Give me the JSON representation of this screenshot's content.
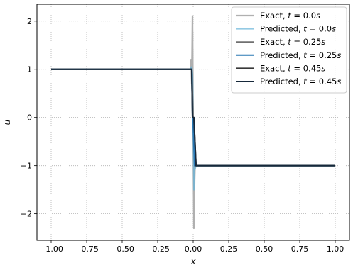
{
  "chart_data": {
    "type": "line",
    "xlabel": "x",
    "ylabel": "u",
    "xlim": [
      -1.1,
      1.1
    ],
    "ylim": [
      -2.55,
      2.35
    ],
    "x_ticks": [
      -1.0,
      -0.75,
      -0.5,
      -0.25,
      0.0,
      0.25,
      0.5,
      0.75,
      1.0
    ],
    "x_tick_labels": [
      "−1.00",
      "−0.75",
      "−0.50",
      "−0.25",
      "0.00",
      "0.25",
      "0.50",
      "0.75",
      "1.00"
    ],
    "y_ticks": [
      -2,
      -1,
      0,
      1,
      2
    ],
    "y_tick_labels": [
      "−2",
      "−1",
      "0",
      "1",
      "2"
    ],
    "grid": true,
    "legend_position": "top-right",
    "series": [
      {
        "name": "Exact, t = 0.0s",
        "legend": {
          "prefix": "Exact, ",
          "var": "t",
          "mid": " = 0.0",
          "unit": "s"
        },
        "color": "#b0b0b0",
        "width": 2.2,
        "opacity": 1,
        "x": [
          -1.0,
          -0.02,
          -0.015,
          -0.01,
          -0.005,
          0.0,
          0.005,
          0.01,
          0.015,
          0.02,
          1.0
        ],
        "y": [
          1.0,
          1.0,
          1.2,
          0.7,
          2.1,
          -0.3,
          -2.3,
          -1.3,
          -0.8,
          -1.0,
          -1.0
        ]
      },
      {
        "name": "Predicted, t = 0.0s",
        "legend": {
          "prefix": "Predicted, ",
          "var": "t",
          "mid": " = 0.0",
          "unit": "s"
        },
        "color": "#67b3d8",
        "width": 2.0,
        "opacity": 0.7,
        "x": [
          -1.0,
          -0.02,
          -0.01,
          -0.005,
          0.0,
          0.005,
          0.01,
          0.02,
          1.0
        ],
        "y": [
          1.0,
          1.0,
          1.05,
          0.9,
          0.0,
          -1.5,
          -1.1,
          -1.0,
          -1.0
        ]
      },
      {
        "name": "Exact, t = 0.25s",
        "legend": {
          "prefix": "Exact, ",
          "var": "t",
          "mid": " = 0.25",
          "unit": "s"
        },
        "color": "#707070",
        "width": 2.0,
        "opacity": 1,
        "x": [
          -1.0,
          -0.01,
          0.0,
          0.01,
          1.0
        ],
        "y": [
          1.0,
          1.0,
          0.0,
          -1.0,
          -1.0
        ]
      },
      {
        "name": "Predicted, t = 0.25s",
        "legend": {
          "prefix": "Predicted, ",
          "var": "t",
          "mid": " = 0.25",
          "unit": "s"
        },
        "color": "#2a78b4",
        "width": 2.0,
        "opacity": 1,
        "x": [
          -1.0,
          -0.01,
          -0.005,
          0.0,
          0.01,
          1.0
        ],
        "y": [
          1.0,
          1.0,
          0.0,
          -0.2,
          -1.0,
          -1.0
        ]
      },
      {
        "name": "Exact, t = 0.45s",
        "legend": {
          "prefix": "Exact, ",
          "var": "t",
          "mid": " = 0.45",
          "unit": "s"
        },
        "color": "#383838",
        "width": 2.0,
        "opacity": 1,
        "x": [
          -1.0,
          -0.01,
          -0.005,
          0.005,
          0.02,
          1.0
        ],
        "y": [
          1.0,
          1.0,
          0.0,
          0.0,
          -1.0,
          -1.0
        ]
      },
      {
        "name": "Predicted, t = 0.45s",
        "legend": {
          "prefix": "Predicted, ",
          "var": "t",
          "mid": " = 0.45",
          "unit": "s"
        },
        "color": "#16283a",
        "width": 2.0,
        "opacity": 1,
        "x": [
          -1.0,
          -0.01,
          -0.005,
          0.005,
          0.02,
          1.0
        ],
        "y": [
          1.0,
          1.0,
          0.0,
          0.0,
          -1.0,
          -1.0
        ]
      }
    ]
  }
}
